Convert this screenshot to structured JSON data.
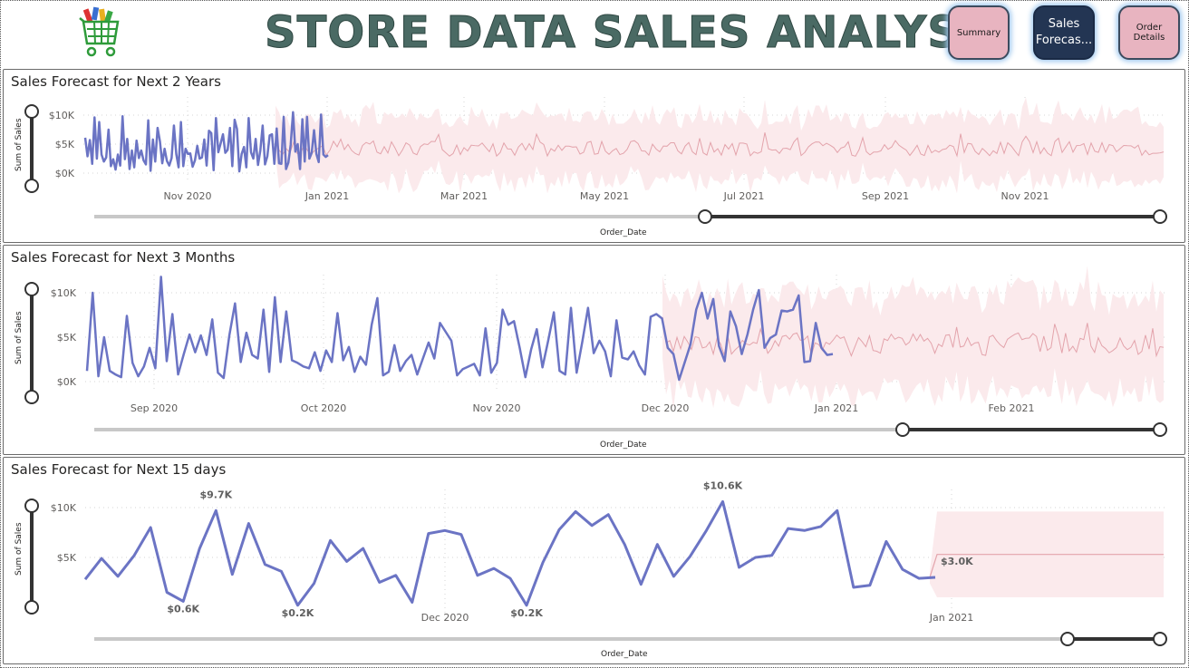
{
  "header": {
    "title": "STORE DATA SALES ANALYSIS",
    "logo_icon": "shopping-cart-icon",
    "buttons": [
      {
        "label": "Summary",
        "active": false
      },
      {
        "label": "Sales Forecas...",
        "active": true
      },
      {
        "label": "Order Details",
        "active": false
      }
    ]
  },
  "colors": {
    "actual_line": "#6b74c4",
    "forecast_line": "#e3a3ab",
    "forecast_band": "#fbeaec",
    "title_text": "#4a6a64",
    "active_button": "#233553",
    "inactive_button": "#e8b4c0"
  },
  "charts": [
    {
      "title": "Sales Forecast for Next 2 Years",
      "y_axis_title": "Sum of Sales",
      "x_axis_title": "Order_Date",
      "y_ticks": [
        "$10K",
        "$5K",
        "$0K"
      ],
      "x_ticks": [
        "Nov 2020",
        "Jan 2021",
        "Mar 2021",
        "May 2021",
        "Jul 2021",
        "Sep 2021",
        "Nov 2021"
      ]
    },
    {
      "title": "Sales Forecast for Next 3 Months",
      "y_axis_title": "Sum of Sales",
      "x_axis_title": "Order_Date",
      "y_ticks": [
        "$10K",
        "$5K",
        "$0K"
      ],
      "x_ticks": [
        "Sep 2020",
        "Oct 2020",
        "Nov 2020",
        "Dec 2020",
        "Jan 2021",
        "Feb 2021"
      ]
    },
    {
      "title": "Sales Forecast for Next 15 days",
      "y_axis_title": "Sum of Sales",
      "x_axis_title": "Order_Date",
      "y_ticks": [
        "$10K",
        "$5K"
      ],
      "x_ticks": [
        "Dec 2020",
        "Jan 2021"
      ],
      "data_labels": [
        "$9.7K",
        "$0.6K",
        "$0.2K",
        "$0.2K",
        "$10.6K",
        "$3.0K"
      ]
    }
  ],
  "chart_data": [
    {
      "type": "line",
      "title": "Sales Forecast for Next 2 Years",
      "ylabel": "Sum of Sales",
      "xlabel": "Order_Date",
      "ylim": [
        0,
        10000
      ],
      "x_ticks": [
        "Nov 2020",
        "Jan 2021",
        "Mar 2021",
        "May 2021",
        "Jul 2021",
        "Sep 2021",
        "Nov 2021"
      ],
      "actual": [
        6100,
        2900,
        5700,
        1600,
        9600,
        2500,
        8800,
        3200,
        2000,
        2700,
        7500,
        1200,
        2400,
        600,
        3200,
        1300,
        9800,
        2400,
        5900,
        700,
        3900,
        1000,
        5600,
        2600,
        3900,
        2200,
        1500,
        9100,
        400,
        5800,
        2000,
        7800,
        5500,
        1700,
        4200,
        2100,
        1300,
        2600,
        8200,
        3300,
        1000,
        8800,
        1200,
        4200,
        3300,
        3400,
        1100,
        2200,
        4700,
        2500,
        2700,
        5800,
        1300,
        7300,
        6900,
        500,
        9500,
        3600,
        5100,
        6700,
        3500,
        4000,
        7800,
        1200,
        9200,
        7600,
        300,
        3300,
        4500,
        1000,
        9500,
        3600,
        2500,
        5900,
        1400,
        3900,
        8200,
        1500,
        2900,
        6500,
        6700,
        1600,
        7700,
        1700,
        1600,
        9700,
        700,
        1800,
        4900,
        10500,
        3700,
        5000,
        700,
        9300,
        2000,
        9700,
        2500,
        3500,
        7400,
        3300,
        1900,
        10100,
        3200,
        2800,
        3100
      ]
    },
    {
      "type": "line",
      "title": "Sales Forecast for Next 3 Months",
      "ylabel": "Sum of Sales",
      "xlabel": "Order_Date",
      "ylim": [
        0,
        10000
      ],
      "x_ticks": [
        "Sep 2020",
        "Oct 2020",
        "Nov 2020",
        "Dec 2020",
        "Jan 2021",
        "Feb 2021"
      ],
      "actual": [
        1200,
        10000,
        600,
        5000,
        1200,
        800,
        500,
        7400,
        2100,
        600,
        1700,
        3800,
        1500,
        11800,
        2300,
        7600,
        800,
        3100,
        5300,
        3300,
        5200,
        3000,
        7000,
        1000,
        400,
        5200,
        8800,
        2200,
        5500,
        3000,
        2600,
        8100,
        1100,
        9500,
        2200,
        7900,
        2400,
        2100,
        1700,
        1500,
        3300,
        1200,
        3500,
        2200,
        7700,
        2400,
        3900,
        1100,
        2800,
        1900,
        6400,
        9400,
        700,
        1100,
        4100,
        1200,
        2300,
        3000,
        800,
        2600,
        4400,
        2600,
        6600,
        5600,
        4600,
        700,
        1400,
        1700,
        2000,
        700,
        6000,
        1000,
        2100,
        8100,
        6400,
        6800,
        3800,
        500,
        3600,
        5900,
        1600,
        4600,
        7800,
        1200,
        800,
        8300,
        1000,
        4500,
        8300,
        3200,
        4600,
        3400,
        600,
        6900,
        2700,
        2500,
        3400,
        1800,
        800,
        7300,
        7600,
        7100,
        3800,
        3100,
        200,
        2200,
        4200,
        8100,
        10000,
        7100,
        9300,
        4000,
        2300,
        7900,
        6200,
        3100,
        5300,
        8100,
        10300,
        3800,
        4900,
        5300,
        8000,
        7900,
        8100,
        9700,
        2200,
        2300,
        6600,
        3800,
        3000,
        3100
      ]
    },
    {
      "type": "line",
      "title": "Sales Forecast for Next 15 days",
      "ylabel": "Sum of Sales",
      "xlabel": "Order_Date",
      "ylim": [
        0,
        10000
      ],
      "x_ticks": [
        "Dec 2020",
        "Jan 2021"
      ],
      "actual": [
        2800,
        4900,
        3100,
        5200,
        8000,
        1500,
        600,
        5900,
        9700,
        3300,
        8400,
        4300,
        3600,
        200,
        2400,
        6700,
        4600,
        5900,
        2500,
        3200,
        500,
        7400,
        7700,
        7300,
        3200,
        3900,
        2900,
        200,
        4500,
        7800,
        9600,
        8200,
        9300,
        6300,
        2300,
        6300,
        3100,
        5100,
        7700,
        10600,
        4000,
        5000,
        5200,
        7900,
        7700,
        8100,
        9700,
        2000,
        2200,
        6600,
        3800,
        2900,
        3000
      ],
      "forecast": 5300,
      "forecast_band": [
        1000,
        9600
      ],
      "data_labels": [
        "$9.7K",
        "$0.6K",
        "$0.2K",
        "$0.2K",
        "$10.6K",
        "$3.0K"
      ]
    }
  ]
}
